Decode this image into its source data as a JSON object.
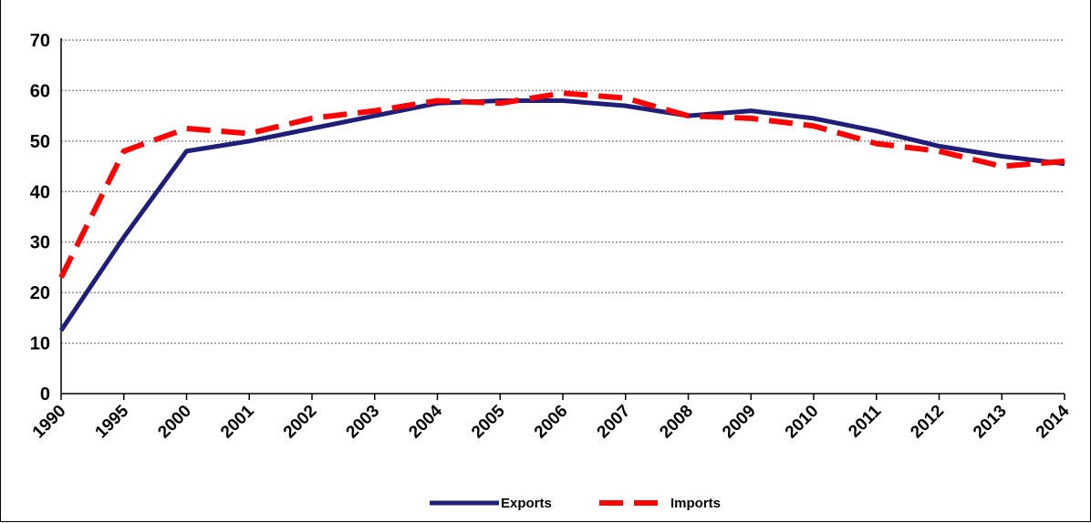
{
  "chart_data": {
    "type": "line",
    "title": "",
    "xlabel": "",
    "ylabel": "",
    "categories": [
      "1990",
      "1995",
      "2000",
      "2001",
      "2002",
      "2003",
      "2004",
      "2005",
      "2006",
      "2007",
      "2008",
      "2009",
      "2010",
      "2011",
      "2012",
      "2013",
      "2014"
    ],
    "ylim": [
      0,
      70
    ],
    "yticks": [
      "0",
      "10",
      "20",
      "30",
      "40",
      "50",
      "60",
      "70"
    ],
    "grid": true,
    "legend_position": "bottom",
    "series": [
      {
        "name": "Exports",
        "color": "#1f1f7a",
        "style": "solid",
        "values": [
          12.5,
          31,
          48,
          50,
          52.5,
          55,
          57.5,
          58,
          58,
          57,
          55,
          56,
          54.5,
          52,
          49,
          47,
          45.5
        ]
      },
      {
        "name": "Imports",
        "color": "#ff0000",
        "style": "dashed",
        "values": [
          23,
          48,
          52.5,
          51.5,
          54.5,
          56,
          58,
          57.5,
          59.5,
          58.5,
          55,
          54.5,
          53,
          49.5,
          48,
          45,
          46
        ]
      }
    ]
  }
}
